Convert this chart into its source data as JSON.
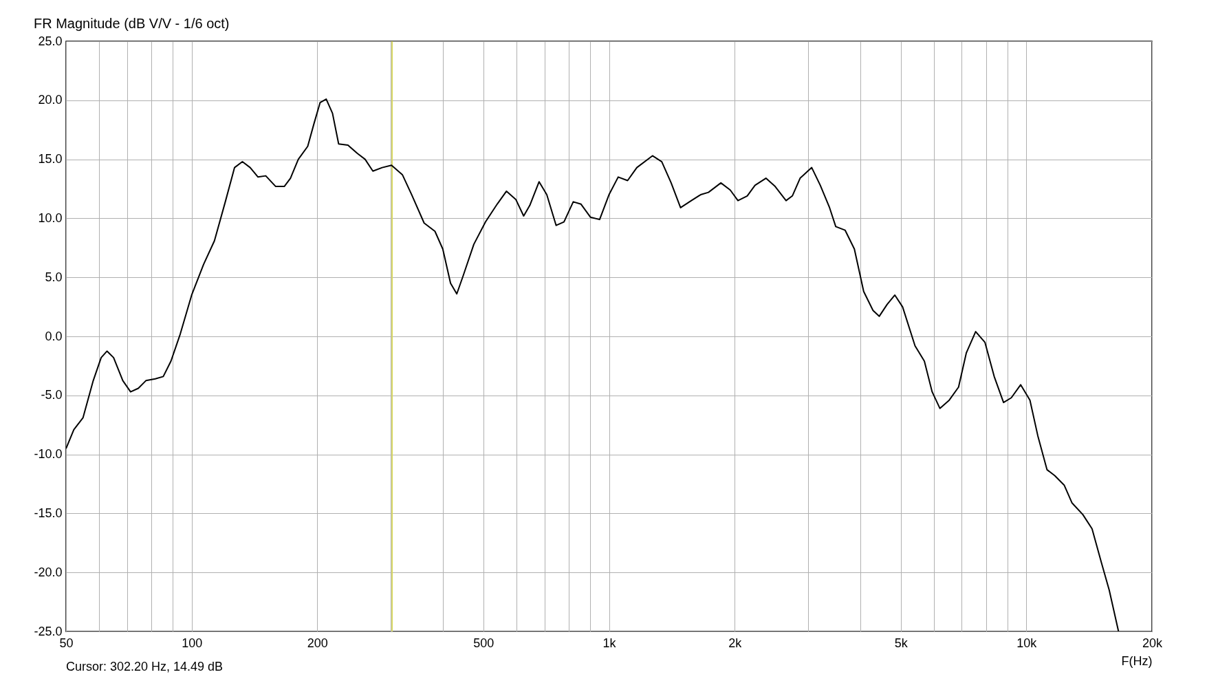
{
  "chart_data": {
    "type": "line",
    "title": "FR Magnitude (dB V/V - 1/6 oct)",
    "xlabel": "F(Hz)",
    "annotations": [
      "Cursor: 302.20 Hz, 14.49 dB"
    ],
    "log": "x",
    "grid": true,
    "marker": "none",
    "line_style": "solid",
    "xlim": [
      50,
      20000
    ],
    "ylim": [
      -25,
      25
    ],
    "xticks": [
      {
        "value": 50,
        "label": "50"
      },
      {
        "value": 60,
        "label": null
      },
      {
        "value": 70,
        "label": null
      },
      {
        "value": 80,
        "label": null
      },
      {
        "value": 90,
        "label": null
      },
      {
        "value": 100,
        "label": "100"
      },
      {
        "value": 200,
        "label": "200"
      },
      {
        "value": 300,
        "label": null
      },
      {
        "value": 400,
        "label": null
      },
      {
        "value": 500,
        "label": "500"
      },
      {
        "value": 600,
        "label": null
      },
      {
        "value": 700,
        "label": null
      },
      {
        "value": 800,
        "label": null
      },
      {
        "value": 900,
        "label": null
      },
      {
        "value": 1000,
        "label": "1k"
      },
      {
        "value": 2000,
        "label": "2k"
      },
      {
        "value": 3000,
        "label": null
      },
      {
        "value": 4000,
        "label": null
      },
      {
        "value": 5000,
        "label": "5k"
      },
      {
        "value": 6000,
        "label": null
      },
      {
        "value": 7000,
        "label": null
      },
      {
        "value": 8000,
        "label": null
      },
      {
        "value": 9000,
        "label": null
      },
      {
        "value": 10000,
        "label": "10k"
      },
      {
        "value": 20000,
        "label": "20k"
      }
    ],
    "yticks": [
      {
        "value": -25,
        "label": "-25.0"
      },
      {
        "value": -20,
        "label": "-20.0"
      },
      {
        "value": -15,
        "label": "-15.0"
      },
      {
        "value": -10,
        "label": "-10.0"
      },
      {
        "value": -5,
        "label": "-5.0"
      },
      {
        "value": 0,
        "label": "0.0"
      },
      {
        "value": 5,
        "label": "5.0"
      },
      {
        "value": 10,
        "label": "10.0"
      },
      {
        "value": 15,
        "label": "15.0"
      },
      {
        "value": 20,
        "label": "20.0"
      },
      {
        "value": 25,
        "label": "25.0"
      }
    ],
    "ref_lines": [
      {
        "axis": "x",
        "value": 302.2,
        "color": "#d8d860"
      }
    ],
    "series": [
      {
        "color": "#000000",
        "x": [
          50,
          52.2,
          54.9,
          58.1,
          60.7,
          62.7,
          65.0,
          68.4,
          71.4,
          74.5,
          77.7,
          81.8,
          85.5,
          89.2,
          93.9,
          100,
          106.8,
          113.4,
          120.4,
          126.7,
          132.3,
          138.1,
          144.2,
          150.5,
          159,
          166.7,
          172.5,
          180.1,
          189.7,
          196.3,
          203.1,
          210.1,
          217.5,
          225,
          236.9,
          249.5,
          260.4,
          271.8,
          286.1,
          301.2,
          319.8,
          336.7,
          360.6,
          382.8,
          399.7,
          417.2,
          431.8,
          446.9,
          474.4,
          506,
          539.5,
          568,
          598,
          624.5,
          646,
          680,
          709.5,
          747,
          780,
          821,
          857,
          902.5,
          949.5,
          1000,
          1052,
          1108,
          1166,
          1271,
          1338,
          1409,
          1484,
          1575,
          1658,
          1731,
          1854,
          1952,
          2037,
          2144,
          2238,
          2377,
          2501,
          2656,
          2750,
          2870,
          3060,
          3208,
          3377,
          3494,
          3678,
          3872,
          4076,
          4291,
          4441,
          4638,
          4841,
          5052,
          5411,
          5697,
          5947,
          6206,
          6536,
          6880,
          7181,
          7560,
          7957,
          8375,
          8818,
          9204,
          9690,
          10200,
          10650,
          11210,
          11700,
          12320,
          12860,
          13660,
          14370,
          15140,
          15800,
          16630
        ],
        "values": [
          -9.5,
          -7.9,
          -6.9,
          -3.75,
          -1.8,
          -1.25,
          -1.8,
          -3.75,
          -4.7,
          -4.4,
          -3.75,
          -3.6,
          -3.4,
          -2.1,
          0.2,
          3.5,
          6.1,
          8.1,
          11.4,
          14.3,
          14.8,
          14.3,
          13.5,
          13.6,
          12.7,
          12.7,
          13.4,
          15.0,
          16.1,
          18.0,
          19.8,
          20.1,
          18.9,
          16.3,
          16.2,
          15.5,
          15.0,
          14.0,
          14.3,
          14.5,
          13.7,
          12.0,
          9.6,
          8.9,
          7.4,
          4.5,
          3.6,
          5.1,
          7.8,
          9.7,
          11.2,
          12.3,
          11.6,
          10.2,
          11.1,
          13.1,
          12.0,
          9.4,
          9.7,
          11.4,
          11.2,
          10.1,
          9.9,
          12.0,
          13.5,
          13.2,
          14.3,
          15.3,
          14.8,
          13.0,
          10.9,
          11.5,
          12.0,
          12.2,
          13.0,
          12.4,
          11.5,
          11.9,
          12.8,
          13.4,
          12.7,
          11.5,
          11.9,
          13.4,
          14.3,
          12.8,
          10.9,
          9.3,
          9.0,
          7.4,
          3.8,
          2.2,
          1.7,
          2.7,
          3.5,
          2.5,
          -0.8,
          -2.1,
          -4.7,
          -6.1,
          -5.4,
          -4.3,
          -1.4,
          0.4,
          -0.5,
          -3.4,
          -5.6,
          -5.2,
          -4.1,
          -5.4,
          -8.4,
          -11.3,
          -11.8,
          -12.6,
          -14.1,
          -15.1,
          -16.3,
          -19.2,
          -21.5,
          -25.0
        ]
      }
    ]
  }
}
